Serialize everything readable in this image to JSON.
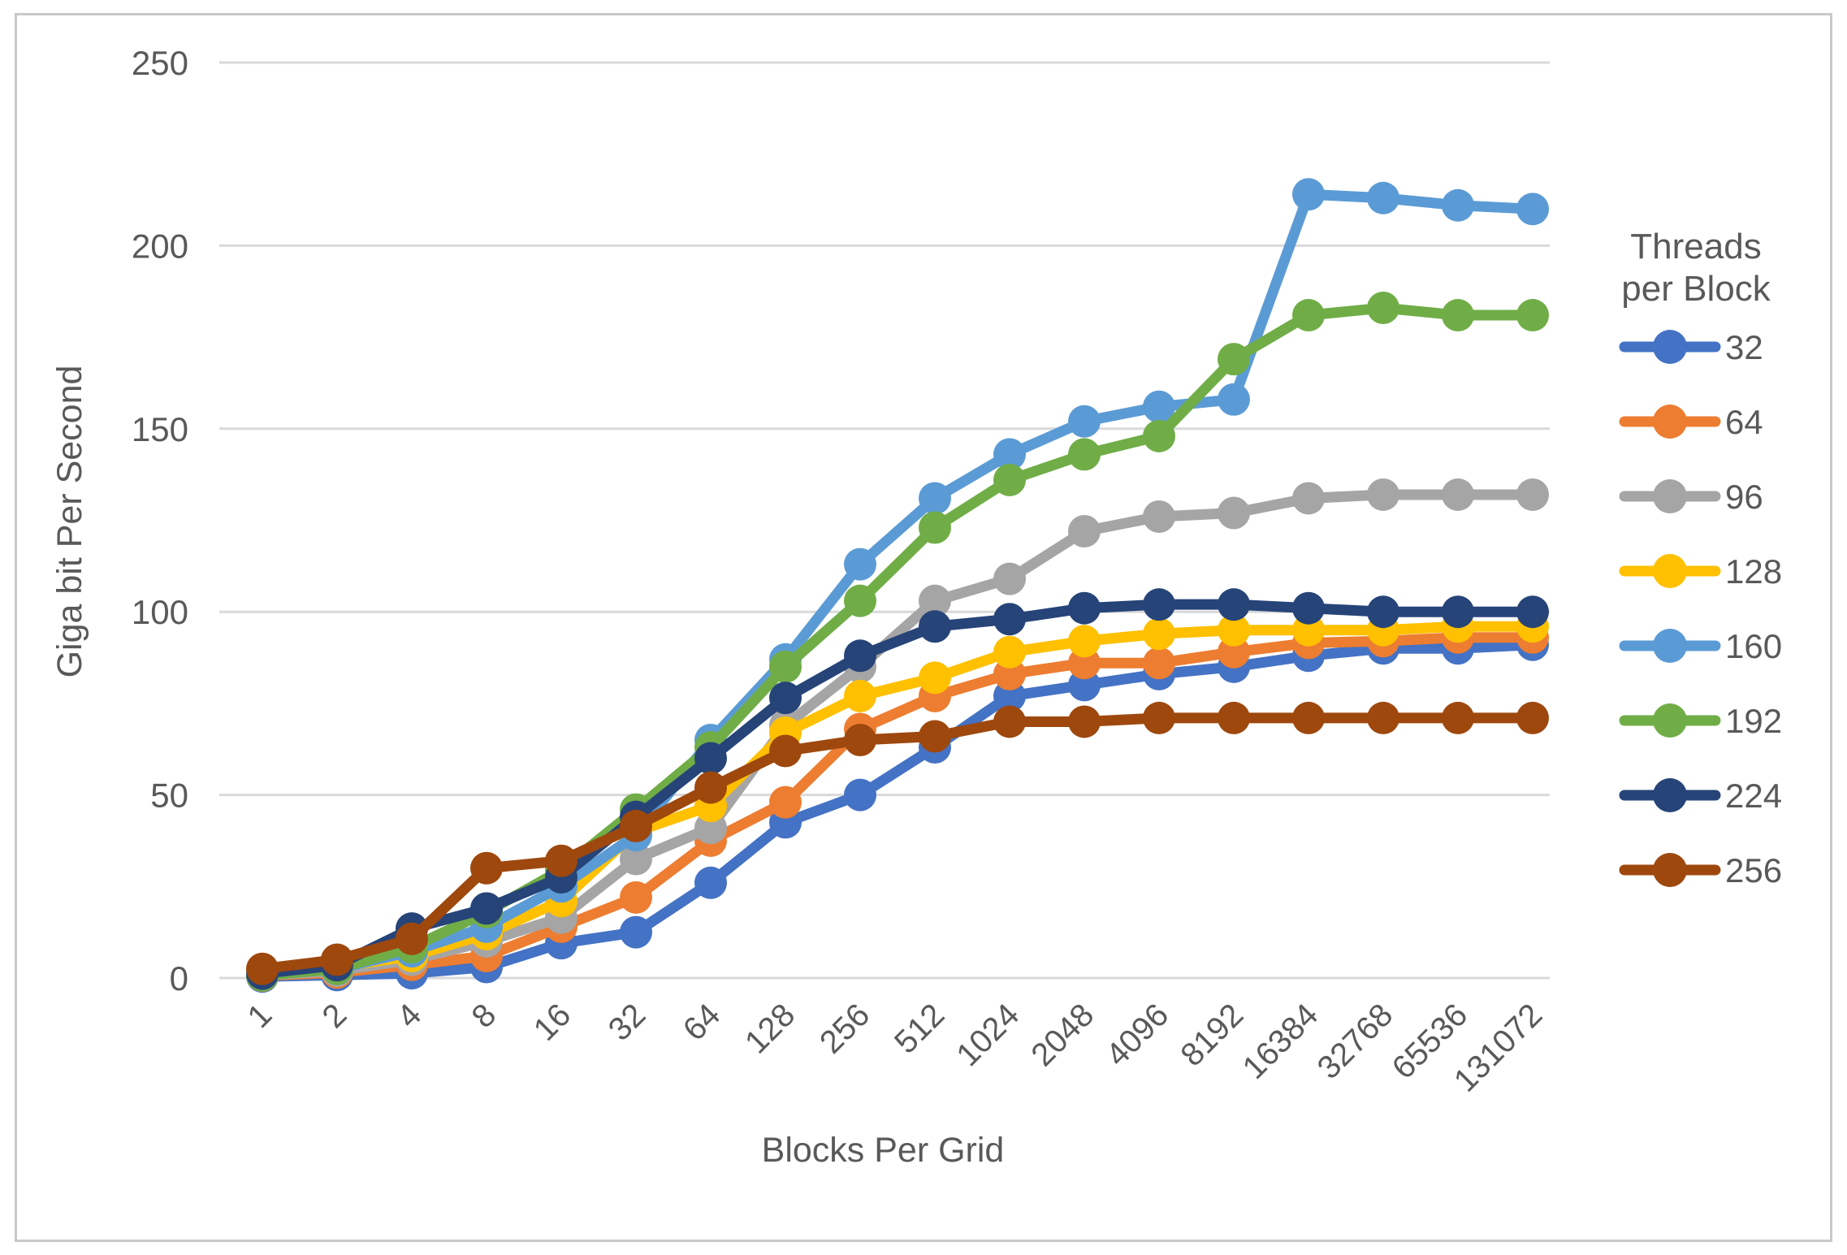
{
  "chart_data": {
    "type": "line",
    "title": "",
    "xlabel": "Blocks Per Grid",
    "ylabel": "Giga bit Per Second",
    "legend_title_line1": "Threads",
    "legend_title_line2": "per Block",
    "legend_position": "right",
    "grid": true,
    "marker": "circle",
    "x_categories": [
      "1",
      "2",
      "4",
      "8",
      "16",
      "32",
      "64",
      "128",
      "256",
      "512",
      "1024",
      "2048",
      "4096",
      "8192",
      "16384",
      "32768",
      "65536",
      "131072"
    ],
    "y_ticks": [
      "0",
      "50",
      "100",
      "150",
      "200",
      "250"
    ],
    "ylim": [
      0,
      250
    ],
    "axis_text_color": "#595959",
    "gridline_color": "#d9d9d9",
    "series": [
      {
        "name": "32",
        "color": "#4472C4",
        "values": [
          0.4,
          0.8,
          1.3,
          3,
          9.5,
          12.5,
          26,
          42.5,
          50,
          63,
          77,
          80,
          83,
          85,
          88,
          90,
          90,
          91
        ]
      },
      {
        "name": "64",
        "color": "#ED7D31",
        "values": [
          0.6,
          1.5,
          3.6,
          6,
          14,
          22,
          37.5,
          48,
          68,
          77,
          83,
          86,
          86,
          89,
          91.5,
          92,
          93,
          93
        ]
      },
      {
        "name": "96",
        "color": "#A5A5A5",
        "values": [
          0.7,
          2,
          5,
          10,
          16.5,
          32.5,
          41,
          69,
          85,
          103,
          109,
          122,
          126,
          127,
          131,
          132,
          132,
          132
        ]
      },
      {
        "name": "128",
        "color": "#FFC000",
        "values": [
          0.8,
          3,
          6,
          12,
          21,
          40,
          47,
          67,
          77,
          82,
          89,
          92,
          94,
          95,
          95,
          95,
          96,
          96
        ]
      },
      {
        "name": "160",
        "color": "#5B9BD5",
        "values": [
          0.7,
          2.5,
          7.3,
          14,
          25,
          39,
          65,
          87,
          113,
          131,
          143,
          152,
          156,
          158,
          214,
          213,
          211,
          210
        ]
      },
      {
        "name": "192",
        "color": "#70AD47",
        "values": [
          0.7,
          2.5,
          8.4,
          18,
          29.5,
          46,
          63,
          85,
          103,
          123,
          136,
          143,
          148,
          169,
          181,
          183,
          181,
          181
        ]
      },
      {
        "name": "224",
        "color": "#264478",
        "values": [
          1.2,
          3.5,
          13.5,
          19,
          27.5,
          44,
          60,
          76.5,
          88,
          96,
          98,
          101,
          102,
          102,
          101,
          100,
          100,
          100
        ]
      },
      {
        "name": "256",
        "color": "#9E480E",
        "values": [
          2.5,
          5,
          10.7,
          30,
          32,
          41.5,
          52,
          62,
          65,
          66,
          70,
          70,
          71,
          71,
          71,
          71,
          71,
          71
        ]
      }
    ]
  }
}
